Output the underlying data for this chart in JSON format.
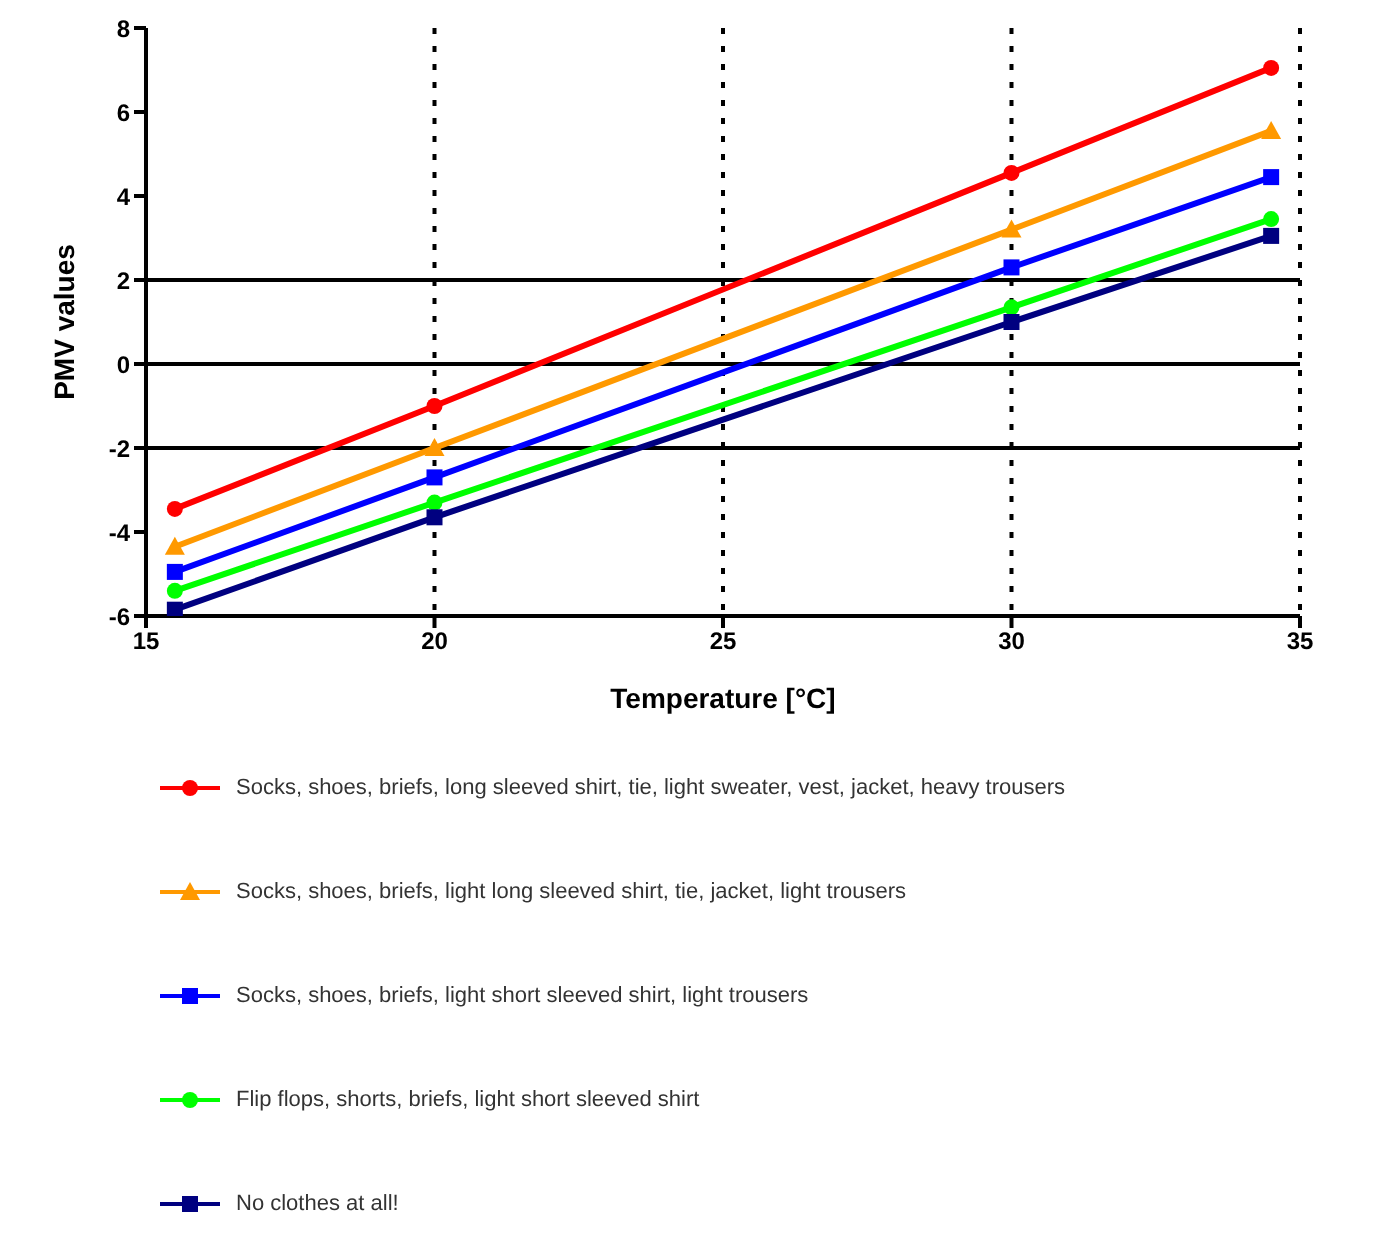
{
  "chart_data": {
    "type": "line",
    "xlabel": "Temperature [°C]",
    "ylabel": "PMV values",
    "xlim": [
      15,
      35
    ],
    "xticks": [
      15,
      20,
      25,
      30,
      35
    ],
    "ylim": [
      -6,
      8
    ],
    "yticks": [
      -6,
      -4,
      -2,
      0,
      2,
      4,
      6,
      8
    ],
    "grid": "x",
    "legend": "bottom",
    "ref_lines": [
      {
        "axis": "y",
        "value": 2,
        "color": "#000000"
      },
      {
        "axis": "y",
        "value": 0,
        "color": "#000000"
      },
      {
        "axis": "y",
        "value": -2,
        "color": "#000000"
      }
    ],
    "series": [
      {
        "name": "Socks, shoes, briefs, long sleeved shirt, tie, light sweater, vest, jacket, heavy trousers",
        "color": "#ff0000",
        "marker": "circle",
        "x": [
          15.5,
          20,
          30,
          34.5
        ],
        "values": [
          -3.45,
          -1.0,
          4.55,
          7.05
        ]
      },
      {
        "name": "Socks, shoes, briefs, light long sleeved shirt, tie, jacket, light trousers",
        "color": "#ff9900",
        "marker": "triangle",
        "x": [
          15.5,
          20,
          30,
          34.5
        ],
        "values": [
          -4.35,
          -2.0,
          3.2,
          5.55
        ]
      },
      {
        "name": "Socks, shoes, briefs, light short sleeved shirt, light trousers",
        "color": "#0000ff",
        "marker": "square",
        "x": [
          15.5,
          20,
          30,
          34.5
        ],
        "values": [
          -4.95,
          -2.7,
          2.3,
          4.45
        ]
      },
      {
        "name": "Flip flops, shorts, briefs, light short sleeved shirt",
        "color": "#00ff00",
        "marker": "circle",
        "x": [
          15.5,
          20,
          30,
          34.5
        ],
        "values": [
          -5.4,
          -3.3,
          1.35,
          3.45
        ]
      },
      {
        "name": "No clothes at all!",
        "color": "#000080",
        "marker": "square",
        "x": [
          15.5,
          20,
          30,
          34.5
        ],
        "values": [
          -5.85,
          -3.65,
          1.0,
          3.05
        ]
      }
    ]
  }
}
